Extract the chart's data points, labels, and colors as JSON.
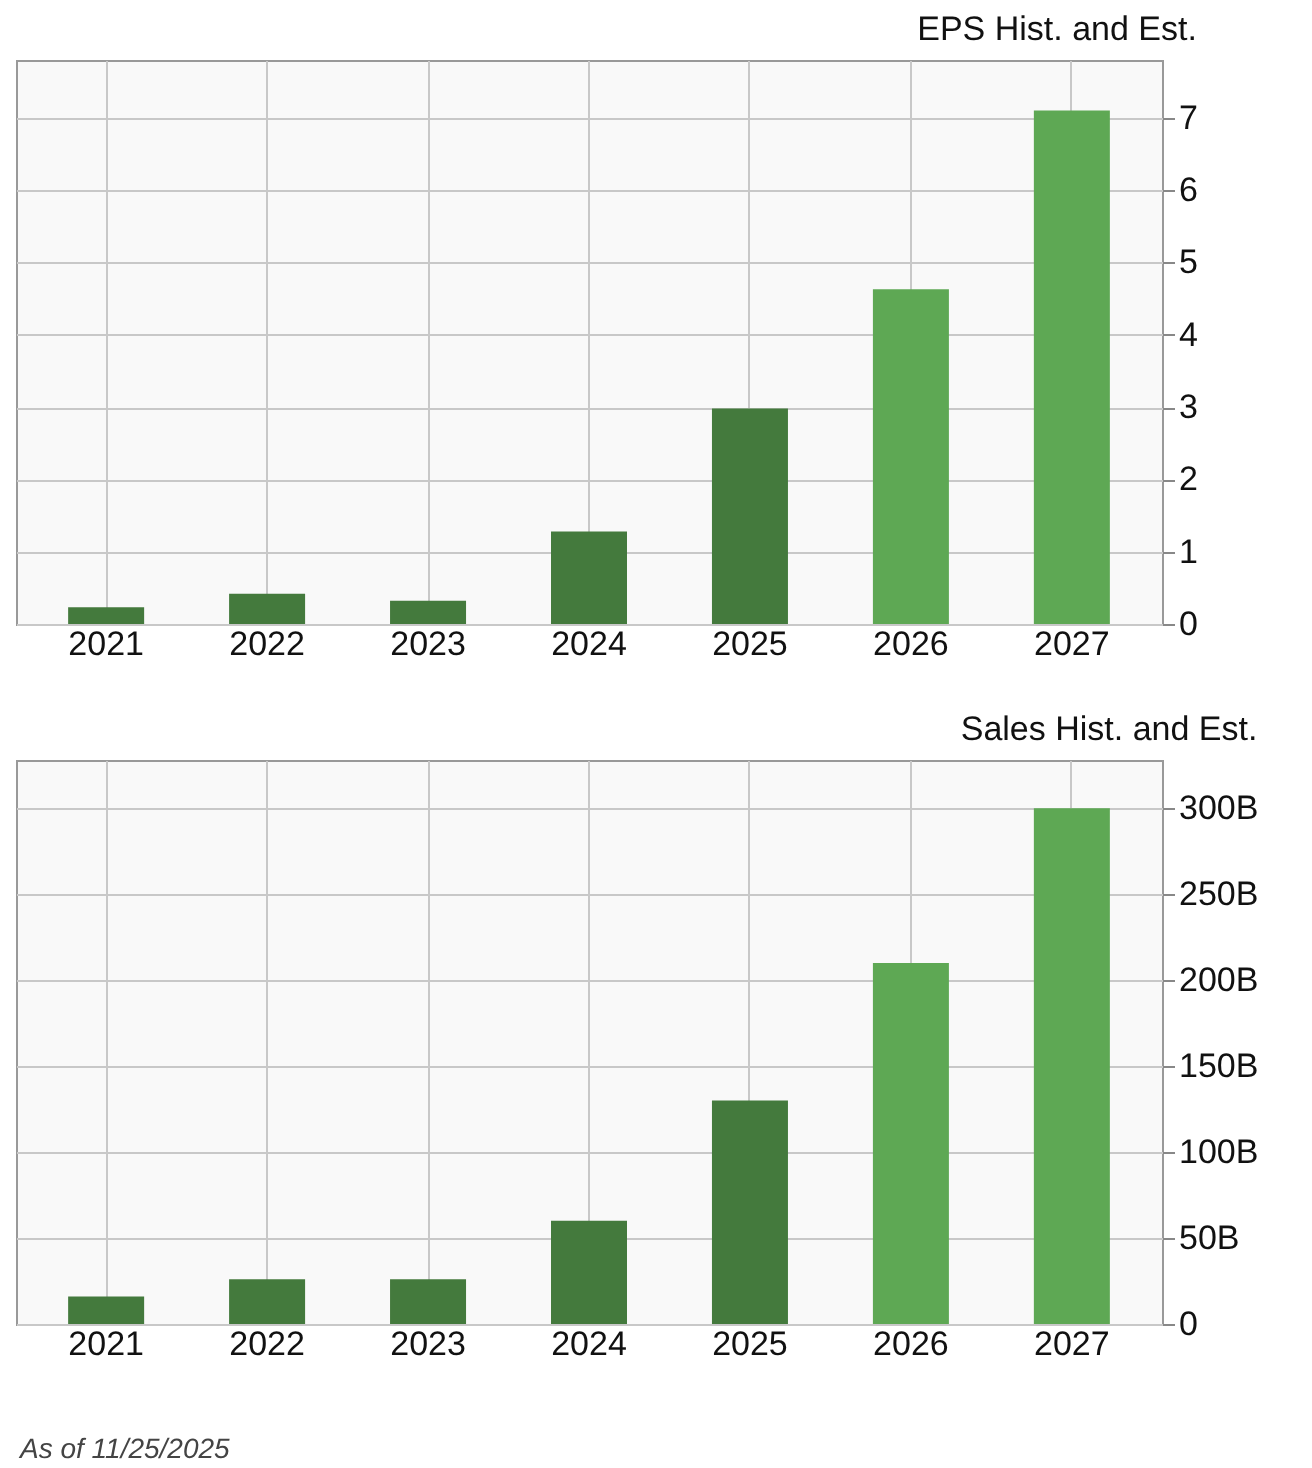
{
  "chart_data": [
    {
      "type": "bar",
      "title": "EPS Hist. and Est.",
      "categories": [
        "2021",
        "2022",
        "2023",
        "2024",
        "2025",
        "2026",
        "2027"
      ],
      "values": [
        0.23,
        0.42,
        0.32,
        1.28,
        2.98,
        4.63,
        7.1
      ],
      "colors": [
        "#447a3d",
        "#447a3d",
        "#447a3d",
        "#447a3d",
        "#447a3d",
        "#5ea854",
        "#5ea854"
      ],
      "ylim": [
        0,
        7.8
      ],
      "yticks": [
        0,
        1,
        2,
        3,
        4,
        5,
        6,
        7
      ],
      "grid": true
    },
    {
      "type": "bar",
      "title": "Sales Hist. and Est.",
      "categories": [
        "2021",
        "2022",
        "2023",
        "2024",
        "2025",
        "2026",
        "2027"
      ],
      "values": [
        16,
        26,
        26,
        60,
        130,
        210,
        300
      ],
      "colors": [
        "#447a3d",
        "#447a3d",
        "#447a3d",
        "#447a3d",
        "#447a3d",
        "#5ea854",
        "#5ea854"
      ],
      "ylim": [
        0,
        328
      ],
      "yticks": [
        0,
        {
          "value": 50,
          "label": "50B"
        },
        {
          "value": 100,
          "label": "100B"
        },
        {
          "value": 150,
          "label": "150B"
        },
        {
          "value": 200,
          "label": "200B"
        },
        {
          "value": 250,
          "label": "250B"
        },
        {
          "value": 300,
          "label": "300B"
        }
      ],
      "grid": true,
      "annotations": [
        "As of 11/25/2025"
      ]
    }
  ]
}
